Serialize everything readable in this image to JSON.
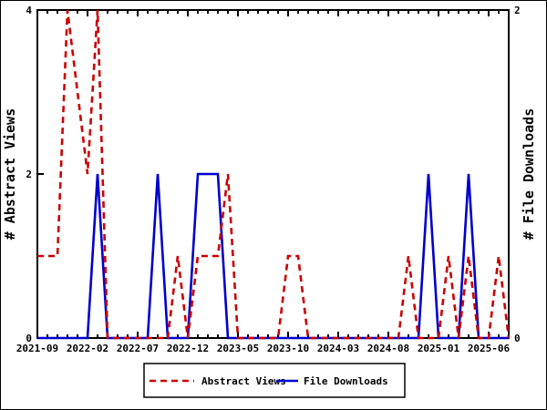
{
  "chart_data": {
    "type": "line",
    "title": "",
    "x": [
      "2021-09",
      "2021-10",
      "2021-11",
      "2021-12",
      "2022-01",
      "2022-02",
      "2022-03",
      "2022-04",
      "2022-05",
      "2022-06",
      "2022-07",
      "2022-08",
      "2022-09",
      "2022-10",
      "2022-11",
      "2022-12",
      "2023-01",
      "2023-02",
      "2023-03",
      "2023-04",
      "2023-05",
      "2023-06",
      "2023-07",
      "2023-08",
      "2023-09",
      "2023-10",
      "2023-11",
      "2023-12",
      "2024-01",
      "2024-02",
      "2024-03",
      "2024-04",
      "2024-05",
      "2024-06",
      "2024-07",
      "2024-08",
      "2024-09",
      "2024-10",
      "2024-11",
      "2024-12",
      "2025-01",
      "2025-02",
      "2025-03",
      "2025-04",
      "2025-05",
      "2025-06",
      "2025-07",
      "2025-08"
    ],
    "x_tick_labels": [
      "2021-09",
      "2022-02",
      "2022-07",
      "2022-12",
      "2023-05",
      "2023-10",
      "2024-03",
      "2024-08",
      "2025-01",
      "2025-06"
    ],
    "series": [
      {
        "name": "Abstract Views",
        "axis": "left",
        "color": "#cc0000",
        "style": "dashed",
        "values": [
          1,
          1,
          1,
          4,
          3,
          2,
          4,
          0,
          0,
          0,
          0,
          0,
          0,
          0,
          1,
          0,
          1,
          1,
          1,
          2,
          0,
          0,
          0,
          0,
          0,
          1,
          1,
          0,
          0,
          0,
          0,
          0,
          0,
          0,
          0,
          0,
          0,
          1,
          0,
          0,
          0,
          1,
          0,
          1,
          0,
          0,
          1,
          0
        ]
      },
      {
        "name": "File Downloads",
        "axis": "right",
        "color": "#0000cc",
        "style": "solid",
        "values": [
          0,
          0,
          0,
          0,
          0,
          0,
          1,
          0,
          0,
          0,
          0,
          0,
          1,
          0,
          0,
          0,
          1,
          1,
          1,
          0,
          0,
          0,
          0,
          0,
          0,
          0,
          0,
          0,
          0,
          0,
          0,
          0,
          0,
          0,
          0,
          0,
          0,
          0,
          0,
          1,
          0,
          0,
          0,
          1,
          0,
          0,
          0,
          0
        ]
      }
    ],
    "left_axis": {
      "label": "# Abstract Views",
      "min": 0,
      "max": 4,
      "ticks": [
        0,
        2,
        4
      ]
    },
    "right_axis": {
      "label": "# File Downloads",
      "min": 0,
      "max": 2,
      "ticks": [
        0,
        2
      ]
    },
    "grid": false,
    "legend_position": "bottom-center",
    "colors": {
      "background": "#ffffff",
      "axis": "#000000",
      "text": "#000000"
    }
  }
}
